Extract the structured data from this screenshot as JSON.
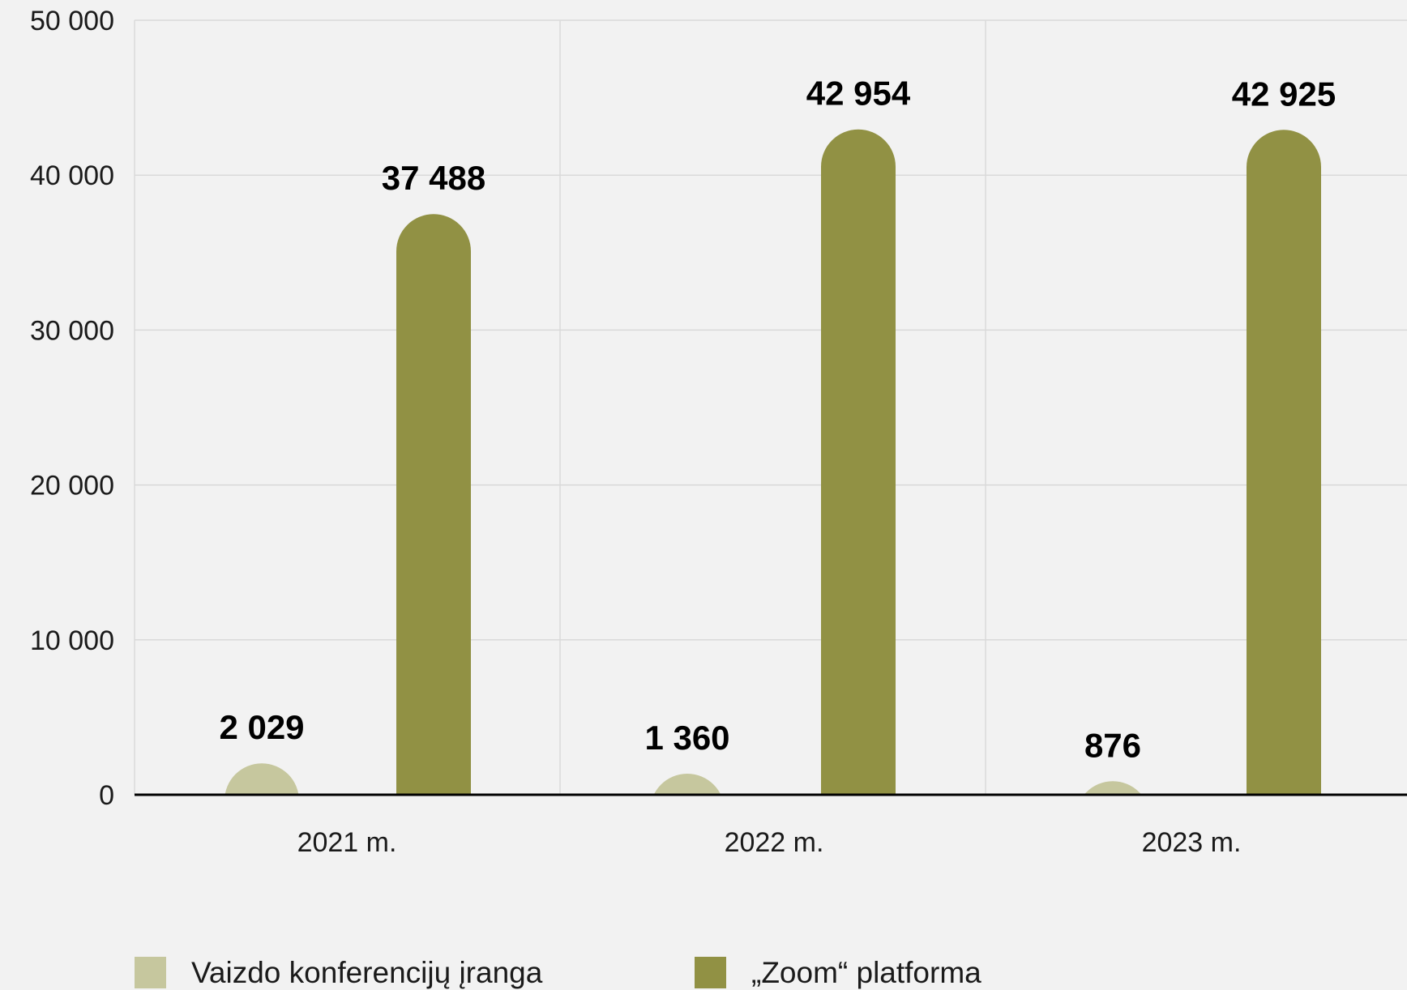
{
  "chart_data": {
    "type": "bar",
    "categories": [
      "2021 m.",
      "2022 m.",
      "2023 m."
    ],
    "series": [
      {
        "name": "Vaizdo konferencijų įranga",
        "values": [
          2029,
          1360,
          876
        ],
        "labels": [
          "2 029",
          "1 360",
          "876"
        ],
        "color": "#c6c79e"
      },
      {
        "name": "„Zoom“ platforma",
        "values": [
          37488,
          42954,
          42925
        ],
        "labels": [
          "37 488",
          "42 954",
          "42 925"
        ],
        "color": "#919144"
      }
    ],
    "ylim": [
      0,
      50000
    ],
    "yticks": [
      0,
      10000,
      20000,
      30000,
      40000,
      50000
    ],
    "ytick_labels": [
      "0",
      "10 000",
      "20 000",
      "30 000",
      "40 000",
      "50 000"
    ],
    "grid": true,
    "legend_position": "bottom-left",
    "title": "",
    "xlabel": "",
    "ylabel": ""
  },
  "colors": {
    "background": "#f2f2f2",
    "grid": "#d9d9d9",
    "baseline": "#000000"
  }
}
